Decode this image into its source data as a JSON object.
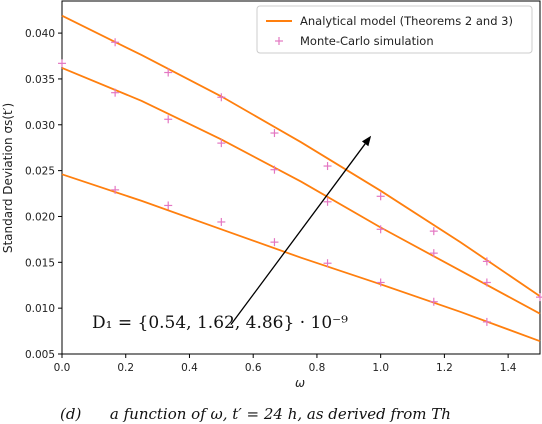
{
  "chart_data": {
    "type": "line",
    "xlabel": "ω",
    "ylabel": "Standard Deviation σs(t′)",
    "xlim": [
      0.0,
      1.5
    ],
    "ylim": [
      0.005,
      0.0435
    ],
    "x_ticks": [
      "0.0",
      "0.2",
      "0.4",
      "0.6",
      "0.8",
      "1.0",
      "1.2",
      "1.4"
    ],
    "y_ticks": [
      "0.005",
      "0.010",
      "0.015",
      "0.020",
      "0.025",
      "0.030",
      "0.035",
      "0.040"
    ],
    "grid": false,
    "legend_position": "top-right",
    "legend": [
      {
        "label": "Analytical model (Theorems 2 and 3)",
        "color": "#ff7f0e",
        "style": "line"
      },
      {
        "label": "Monte-Carlo simulation",
        "color": "#e377c2",
        "style": "plus"
      }
    ],
    "series": [
      {
        "analytical": {
          "x": [
            0.0,
            0.25,
            0.5,
            0.75,
            1.0,
            1.25,
            1.5
          ],
          "y": [
            0.0419,
            0.0376,
            0.0331,
            0.0281,
            0.0228,
            0.0172,
            0.0113
          ]
        },
        "montecarlo": {
          "x": [
            0.1667,
            0.3333,
            0.5,
            0.6667,
            0.8333,
            1.0,
            1.1667,
            1.3333,
            1.5
          ],
          "y": [
            0.039,
            0.0357,
            0.033,
            0.0291,
            0.0255,
            0.0222,
            0.0184,
            0.0151,
            0.0112
          ]
        }
      },
      {
        "analytical": {
          "x": [
            0.0,
            0.25,
            0.5,
            0.75,
            1.0,
            1.25,
            1.5
          ],
          "y": [
            0.0362,
            0.0326,
            0.0284,
            0.0238,
            0.0188,
            0.0141,
            0.0094
          ]
        },
        "montecarlo": {
          "x": [
            0.0,
            0.1667,
            0.3333,
            0.5,
            0.6667,
            0.8333,
            1.0,
            1.1667,
            1.3333
          ],
          "y": [
            0.0367,
            0.0335,
            0.0306,
            0.028,
            0.0251,
            0.0216,
            0.0186,
            0.016,
            0.0128
          ]
        }
      },
      {
        "analytical": {
          "x": [
            0.0,
            0.25,
            0.5,
            0.75,
            1.0,
            1.25,
            1.5
          ],
          "y": [
            0.0246,
            0.0217,
            0.0186,
            0.0155,
            0.0126,
            0.0096,
            0.0064
          ]
        },
        "montecarlo": {
          "x": [
            0.1667,
            0.3333,
            0.5,
            0.6667,
            0.8333,
            1.0,
            1.1667,
            1.3333
          ],
          "y": [
            0.0229,
            0.0212,
            0.0194,
            0.0172,
            0.0149,
            0.0128,
            0.0107,
            0.0085
          ]
        }
      }
    ],
    "annotation": {
      "text": "D₁ = {0.54, 1.62, 4.86} · 10⁻⁹",
      "arrow_from": {
        "x": 0.53,
        "y": 0.0082
      },
      "arrow_to": {
        "x": 0.97,
        "y": 0.0288
      }
    },
    "caption": "(d)      a function of ω, t′ = 24 h, as derived from Th"
  }
}
